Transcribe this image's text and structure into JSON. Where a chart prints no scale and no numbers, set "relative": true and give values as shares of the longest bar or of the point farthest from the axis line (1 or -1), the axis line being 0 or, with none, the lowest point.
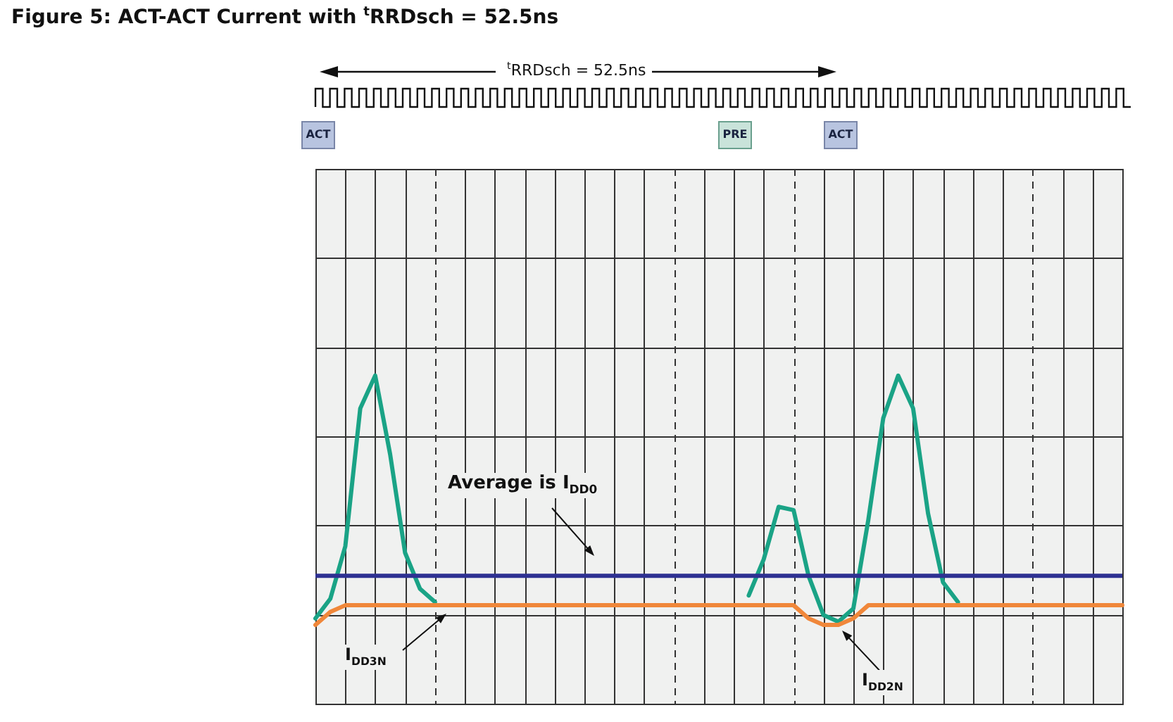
{
  "chart_data": {
    "type": "line",
    "title": "Figure 5: ACT-ACT Current with $^{t}$RRDsch = 52.5ns",
    "relative": true,
    "legend": false,
    "grid": true,
    "marker": "none",
    "line_style": "solid",
    "categories": [
      null,
      null,
      null,
      null,
      null,
      null,
      null,
      null,
      null,
      null,
      null,
      null,
      null,
      null,
      null,
      null,
      null,
      null,
      null,
      null,
      null,
      null,
      null,
      null,
      null,
      null,
      null,
      null,
      null,
      null,
      null,
      null,
      null,
      null,
      null,
      null,
      null,
      null,
      null,
      null,
      null,
      null,
      null,
      null,
      null,
      null,
      null,
      null,
      null,
      null,
      null,
      null,
      null,
      null,
      null
    ],
    "series": [
      {
        "color": "#f0873a",
        "values": [
          0.24,
          0.28,
          0.3,
          0.3,
          0.3,
          0.3,
          0.3,
          0.3,
          0.3,
          0.3,
          0.3,
          0.3,
          0.3,
          0.3,
          0.3,
          0.3,
          0.3,
          0.3,
          0.3,
          0.3,
          0.3,
          0.3,
          0.3,
          0.3,
          0.3,
          0.3,
          0.3,
          0.3,
          0.3,
          0.3,
          0.3,
          0.3,
          0.3,
          0.26,
          0.24,
          0.24,
          0.26,
          0.3,
          0.3,
          0.3,
          0.3,
          0.3,
          0.3,
          0.3,
          0.3,
          0.3,
          0.3,
          0.3,
          0.3,
          0.3,
          0.3,
          0.3,
          0.3,
          0.3,
          0.3
        ]
      },
      {
        "color": "#1aa386",
        "values": [
          0.26,
          0.32,
          0.48,
          0.9,
          1.0,
          0.76,
          0.46,
          0.35,
          0.31,
          null,
          null,
          null,
          null,
          null,
          null,
          null,
          null,
          null,
          null,
          null,
          null,
          null,
          null,
          null,
          null,
          null,
          null,
          null,
          null,
          0.33,
          0.44,
          0.6,
          0.59,
          0.39,
          0.27,
          0.25,
          0.29,
          0.56,
          0.87,
          1.0,
          0.9,
          0.58,
          0.37,
          0.31,
          null,
          null,
          null,
          null,
          null,
          null,
          null,
          null,
          null,
          null,
          null
        ]
      }
    ],
    "ref_lines": [
      {
        "axis": "y",
        "value": 0.39,
        "color": "#2e3192"
      }
    ],
    "annotations": [
      "$^{t}$RRDsch = 52.5ns",
      "ACT",
      "PRE",
      "ACT",
      "I$_{DD3N}$",
      "I$_{DD2N}$",
      "Average is I$_{DD0}$"
    ]
  }
}
